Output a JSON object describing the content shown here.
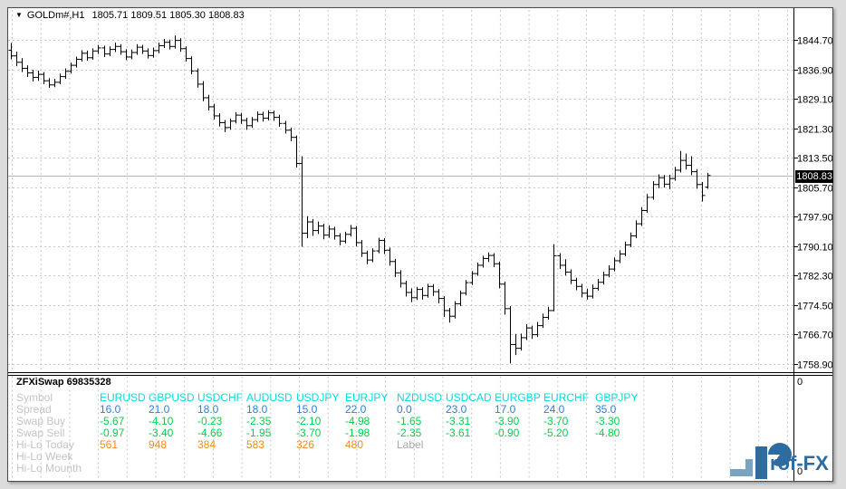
{
  "window": {
    "title_symbol": "GOLDm#,H1",
    "title_ohlc": "1805.71 1809.51 1805.30 1808.83"
  },
  "icons": {
    "dropdown_triangle": "▼"
  },
  "colors": {
    "bar": "#000000",
    "grid": "#c6c6c6",
    "price_line": "#b4b4b4",
    "symbol": "#00dde0",
    "spread": "#2f7ed8",
    "swap": "#00d24f",
    "hilo": "#ef8d1a",
    "row_label": "#c4c4c4",
    "muted_label": "#a6a6a6",
    "logo_dark": "#2e6b9e",
    "logo_light": "#7ba3c4"
  },
  "chart_data": {
    "type": "ohlc-bar",
    "title": "GOLDm#,H1",
    "current_bar_ohlc": [
      "1805.71",
      "1809.51",
      "1805.30",
      "1808.83"
    ],
    "y_axis_labels": [
      "1844.70",
      "1836.90",
      "1829.10",
      "1821.30",
      "1813.50",
      "1805.70",
      "1797.90",
      "1790.10",
      "1782.30",
      "1774.50",
      "1766.70",
      "1758.90"
    ],
    "current_price": "1808.83",
    "ylim": [
      1756.0,
      1848.0
    ],
    "grid": true,
    "bars": [
      [
        1842.0,
        1843.9,
        1839.6,
        1840.5
      ],
      [
        1840.5,
        1841.6,
        1837.8,
        1838.8
      ],
      [
        1838.8,
        1839.9,
        1836.2,
        1837.2
      ],
      [
        1837.2,
        1838.0,
        1834.9,
        1836.0
      ],
      [
        1836.0,
        1836.8,
        1833.7,
        1834.8
      ],
      [
        1834.8,
        1836.6,
        1833.9,
        1835.6
      ],
      [
        1835.6,
        1836.2,
        1833.0,
        1833.9
      ],
      [
        1833.9,
        1834.6,
        1832.0,
        1832.8
      ],
      [
        1832.8,
        1834.4,
        1832.2,
        1833.5
      ],
      [
        1833.5,
        1835.8,
        1833.0,
        1835.0
      ],
      [
        1835.0,
        1837.2,
        1834.4,
        1836.4
      ],
      [
        1836.4,
        1838.7,
        1835.8,
        1838.0
      ],
      [
        1838.0,
        1840.3,
        1837.4,
        1839.6
      ],
      [
        1839.6,
        1842.0,
        1839.0,
        1841.2
      ],
      [
        1841.2,
        1841.9,
        1839.2,
        1840.0
      ],
      [
        1840.0,
        1842.5,
        1839.5,
        1841.8
      ],
      [
        1841.8,
        1843.4,
        1841.0,
        1842.6
      ],
      [
        1842.6,
        1843.2,
        1840.2,
        1841.0
      ],
      [
        1841.0,
        1843.0,
        1840.4,
        1842.2
      ],
      [
        1842.2,
        1844.0,
        1841.5,
        1843.0
      ],
      [
        1843.0,
        1843.6,
        1840.8,
        1841.6
      ],
      [
        1841.6,
        1842.3,
        1839.4,
        1840.2
      ],
      [
        1840.2,
        1842.2,
        1839.6,
        1841.4
      ],
      [
        1841.4,
        1843.6,
        1840.8,
        1842.8
      ],
      [
        1842.8,
        1843.4,
        1841.0,
        1841.8
      ],
      [
        1841.8,
        1842.5,
        1839.8,
        1840.6
      ],
      [
        1840.6,
        1842.7,
        1840.0,
        1841.9
      ],
      [
        1841.9,
        1844.0,
        1841.2,
        1843.2
      ],
      [
        1843.2,
        1845.0,
        1842.6,
        1844.1
      ],
      [
        1844.1,
        1844.8,
        1842.2,
        1843.0
      ],
      [
        1843.0,
        1845.9,
        1842.4,
        1844.6
      ],
      [
        1844.6,
        1845.2,
        1841.6,
        1842.4
      ],
      [
        1842.4,
        1843.0,
        1839.0,
        1839.8
      ],
      [
        1839.8,
        1840.4,
        1835.6,
        1836.5
      ],
      [
        1836.5,
        1837.2,
        1832.1,
        1833.0
      ],
      [
        1833.0,
        1833.8,
        1828.5,
        1829.4
      ],
      [
        1829.4,
        1830.2,
        1826.0,
        1827.0
      ],
      [
        1827.0,
        1827.8,
        1823.6,
        1824.6
      ],
      [
        1824.6,
        1825.3,
        1821.8,
        1822.8
      ],
      [
        1822.8,
        1823.5,
        1820.3,
        1821.5
      ],
      [
        1821.5,
        1823.9,
        1820.9,
        1823.2
      ],
      [
        1823.2,
        1825.6,
        1822.6,
        1824.8
      ],
      [
        1824.8,
        1825.4,
        1822.5,
        1823.4
      ],
      [
        1823.4,
        1824.1,
        1820.9,
        1822.0
      ],
      [
        1822.0,
        1824.3,
        1821.4,
        1823.6
      ],
      [
        1823.6,
        1825.8,
        1823.0,
        1825.0
      ],
      [
        1825.0,
        1825.7,
        1823.1,
        1824.0
      ],
      [
        1824.0,
        1826.1,
        1823.4,
        1825.4
      ],
      [
        1825.4,
        1826.0,
        1823.3,
        1824.2
      ],
      [
        1824.2,
        1824.9,
        1821.7,
        1822.6
      ],
      [
        1822.6,
        1823.3,
        1819.9,
        1820.8
      ],
      [
        1820.8,
        1821.5,
        1817.9,
        1818.9
      ],
      [
        1818.9,
        1819.4,
        1810.9,
        1812.0
      ],
      [
        1812.0,
        1813.9,
        1789.9,
        1793.5
      ],
      [
        1793.5,
        1798.0,
        1792.2,
        1796.5
      ],
      [
        1796.5,
        1797.3,
        1792.8,
        1794.2
      ],
      [
        1794.2,
        1796.6,
        1793.3,
        1795.4
      ],
      [
        1795.4,
        1796.0,
        1791.9,
        1793.0
      ],
      [
        1793.0,
        1795.6,
        1792.3,
        1794.6
      ],
      [
        1794.6,
        1795.2,
        1791.8,
        1792.8
      ],
      [
        1792.8,
        1793.5,
        1790.3,
        1791.4
      ],
      [
        1791.4,
        1793.9,
        1790.8,
        1793.2
      ],
      [
        1793.2,
        1795.7,
        1792.6,
        1794.8
      ],
      [
        1794.8,
        1795.4,
        1790.0,
        1791.0
      ],
      [
        1791.0,
        1791.7,
        1787.2,
        1788.2
      ],
      [
        1788.2,
        1788.9,
        1785.3,
        1786.4
      ],
      [
        1786.4,
        1789.5,
        1785.8,
        1788.8
      ],
      [
        1788.8,
        1792.3,
        1788.2,
        1791.6
      ],
      [
        1791.6,
        1792.2,
        1788.0,
        1789.0
      ],
      [
        1789.0,
        1789.7,
        1784.9,
        1786.0
      ],
      [
        1786.0,
        1786.7,
        1781.9,
        1783.0
      ],
      [
        1783.0,
        1783.7,
        1779.1,
        1780.2
      ],
      [
        1780.2,
        1780.9,
        1776.7,
        1777.8
      ],
      [
        1777.8,
        1778.9,
        1775.2,
        1776.4
      ],
      [
        1776.4,
        1779.3,
        1775.8,
        1778.6
      ],
      [
        1778.6,
        1779.2,
        1775.9,
        1777.0
      ],
      [
        1777.0,
        1780.1,
        1776.4,
        1779.4
      ],
      [
        1779.4,
        1780.0,
        1776.9,
        1778.0
      ],
      [
        1778.0,
        1778.7,
        1774.9,
        1776.2
      ],
      [
        1776.2,
        1776.8,
        1771.3,
        1773.0
      ],
      [
        1773.0,
        1773.7,
        1769.8,
        1771.5
      ],
      [
        1771.5,
        1775.5,
        1770.9,
        1774.8
      ],
      [
        1774.8,
        1778.3,
        1774.2,
        1777.6
      ],
      [
        1777.6,
        1781.1,
        1777.0,
        1780.4
      ],
      [
        1780.4,
        1783.5,
        1779.8,
        1782.8
      ],
      [
        1782.8,
        1785.7,
        1782.2,
        1785.0
      ],
      [
        1785.0,
        1787.5,
        1784.4,
        1786.8
      ],
      [
        1786.8,
        1788.4,
        1785.9,
        1787.6
      ],
      [
        1787.6,
        1788.2,
        1784.5,
        1785.4
      ],
      [
        1785.4,
        1786.0,
        1778.9,
        1780.0
      ],
      [
        1780.0,
        1780.7,
        1771.9,
        1773.5
      ],
      [
        1773.5,
        1774.2,
        1759.0,
        1764.0
      ],
      [
        1764.0,
        1766.8,
        1761.2,
        1763.0
      ],
      [
        1763.0,
        1766.9,
        1762.4,
        1765.8
      ],
      [
        1765.8,
        1769.4,
        1765.2,
        1768.4
      ],
      [
        1768.4,
        1769.0,
        1765.5,
        1766.6
      ],
      [
        1766.6,
        1770.0,
        1766.0,
        1769.0
      ],
      [
        1769.0,
        1772.2,
        1768.4,
        1771.2
      ],
      [
        1771.2,
        1774.0,
        1770.6,
        1773.0
      ],
      [
        1773.0,
        1790.6,
        1772.8,
        1787.5
      ],
      [
        1787.5,
        1788.2,
        1784.0,
        1785.0
      ],
      [
        1785.0,
        1786.6,
        1782.3,
        1783.2
      ],
      [
        1783.2,
        1783.9,
        1780.0,
        1781.0
      ],
      [
        1781.0,
        1781.7,
        1778.4,
        1779.4
      ],
      [
        1779.4,
        1780.1,
        1776.5,
        1777.6
      ],
      [
        1777.6,
        1778.8,
        1775.9,
        1776.8
      ],
      [
        1776.8,
        1779.9,
        1776.2,
        1778.9
      ],
      [
        1778.9,
        1781.4,
        1778.3,
        1780.5
      ],
      [
        1780.5,
        1783.3,
        1779.9,
        1782.4
      ],
      [
        1782.4,
        1785.0,
        1781.8,
        1784.0
      ],
      [
        1784.0,
        1787.1,
        1783.4,
        1786.2
      ],
      [
        1786.2,
        1789.0,
        1785.6,
        1788.0
      ],
      [
        1788.0,
        1791.3,
        1787.4,
        1790.4
      ],
      [
        1790.4,
        1793.7,
        1789.8,
        1792.8
      ],
      [
        1792.8,
        1796.9,
        1792.2,
        1796.0
      ],
      [
        1796.0,
        1800.4,
        1795.4,
        1799.5
      ],
      [
        1799.5,
        1803.9,
        1798.9,
        1803.0
      ],
      [
        1803.0,
        1807.3,
        1802.4,
        1806.4
      ],
      [
        1806.4,
        1809.1,
        1805.4,
        1808.2
      ],
      [
        1808.2,
        1808.9,
        1805.6,
        1806.5
      ],
      [
        1806.5,
        1809.0,
        1805.2,
        1808.0
      ],
      [
        1808.0,
        1811.1,
        1807.4,
        1810.2
      ],
      [
        1810.2,
        1815.3,
        1809.6,
        1812.8
      ],
      [
        1812.8,
        1814.6,
        1810.4,
        1811.5
      ],
      [
        1811.5,
        1813.9,
        1808.9,
        1809.8
      ],
      [
        1809.8,
        1810.5,
        1805.3,
        1806.4
      ],
      [
        1806.4,
        1807.1,
        1801.9,
        1803.5
      ],
      [
        1805.7,
        1809.5,
        1805.3,
        1808.8
      ]
    ]
  },
  "subwindow": {
    "header": "ZFXiSwap 69835328",
    "axis_labels": [
      "0",
      "0"
    ],
    "row_labels": [
      "Symbol",
      "Spread",
      "Swap Buy",
      "Swap Sell",
      "Hi-Lo Today",
      "Hi-Lo Week",
      "Hi-Lo Mounth"
    ],
    "symbols": [
      "EURUSD",
      "GBPUSD",
      "USDCHF",
      "AUDUSD",
      "USDJPY",
      "EURJPY",
      "NZDUSD",
      "USDCAD",
      "EURGBP",
      "EURCHF",
      "GBPJPY"
    ],
    "spread": [
      "16.0",
      "21.0",
      "18.0",
      "18.0",
      "15.0",
      "22.0",
      "0.0",
      "23.0",
      "17.0",
      "24.0",
      "35.0"
    ],
    "swap_buy": [
      "-5.67",
      "-4.10",
      "-0.23",
      "-2.35",
      "-2.10",
      "-4.98",
      "-1.65",
      "-3.31",
      "-3.90",
      "-3.70",
      "-3.30"
    ],
    "swap_sell": [
      "-0.97",
      "-3.40",
      "-4.66",
      "-1.95",
      "-3.70",
      "-1.98",
      "-2.35",
      "-3.61",
      "-0.90",
      "-5.20",
      "-4.80"
    ],
    "hilo_today": [
      "561",
      "948",
      "384",
      "583",
      "326",
      "480",
      "Label",
      "",
      "",
      "",
      ""
    ],
    "hilo_week": [
      "",
      "",
      "",
      "",
      "",
      "",
      "",
      "",
      "",
      "",
      ""
    ],
    "hilo_mounth": [
      "",
      "",
      "",
      "",
      "",
      "",
      "",
      "",
      "",
      "",
      ""
    ]
  },
  "logo": {
    "full_name": "Prof-FX",
    "text_part": "rof-FX"
  }
}
